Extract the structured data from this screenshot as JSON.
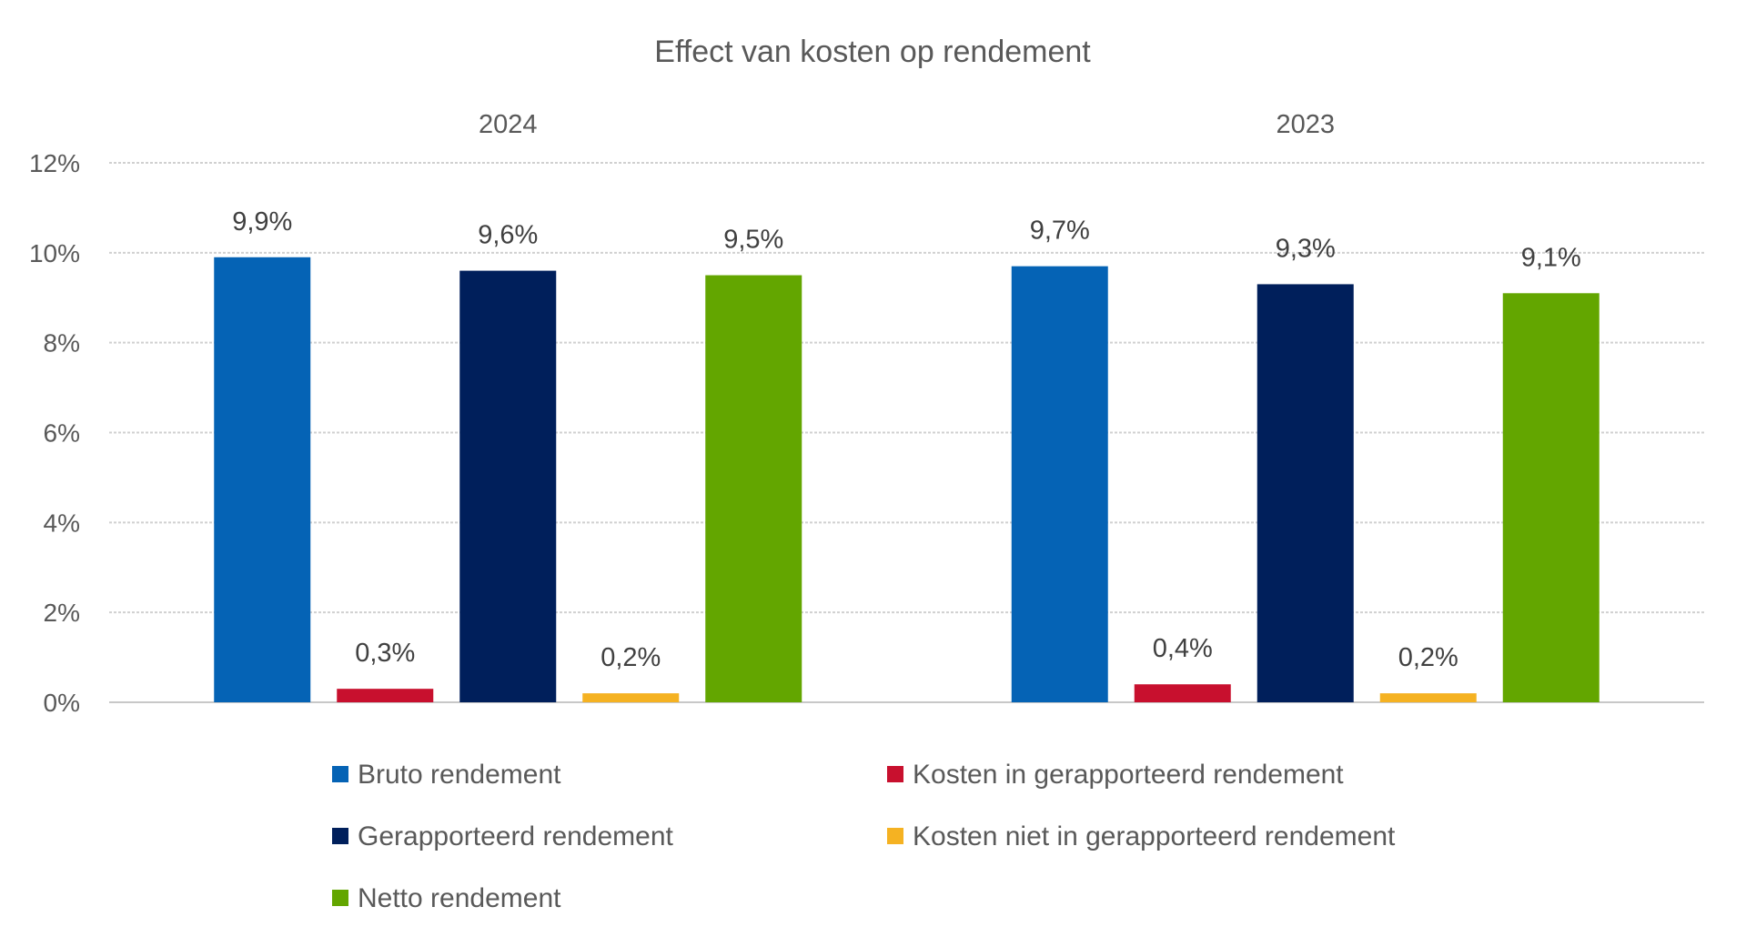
{
  "chart_data": {
    "type": "bar",
    "title": "Effect van kosten op rendement",
    "categories": [
      "2024",
      "2023"
    ],
    "series": [
      {
        "name": "Bruto rendement",
        "color": "#0563B5",
        "values": [
          9.9,
          9.7
        ],
        "labels": [
          "9,9%",
          "9,7%"
        ]
      },
      {
        "name": "Kosten in gerapporteerd rendement",
        "color": "#C8102E",
        "values": [
          0.3,
          0.4
        ],
        "labels": [
          "0,3%",
          "0,4%"
        ]
      },
      {
        "name": "Gerapporteerd rendement",
        "color": "#001F5B",
        "values": [
          9.6,
          9.3
        ],
        "labels": [
          "9,6%",
          "9,3%"
        ]
      },
      {
        "name": "Kosten niet in gerapporteerd rendement",
        "color": "#F5B222",
        "values": [
          0.2,
          0.2
        ],
        "labels": [
          "0,2%",
          "0,2%"
        ]
      },
      {
        "name": "Netto rendement",
        "color": "#63A600",
        "values": [
          9.5,
          9.1
        ],
        "labels": [
          "9,5%",
          "9,1%"
        ]
      }
    ],
    "ylim": [
      0,
      12
    ],
    "yticks": [
      0,
      2,
      4,
      6,
      8,
      10,
      12
    ],
    "ytick_labels": [
      "0%",
      "2%",
      "4%",
      "6%",
      "8%",
      "10%",
      "12%"
    ],
    "xlabel": "",
    "ylabel": "",
    "grid": true,
    "legend_position": "bottom",
    "category_labels_position": "top"
  }
}
